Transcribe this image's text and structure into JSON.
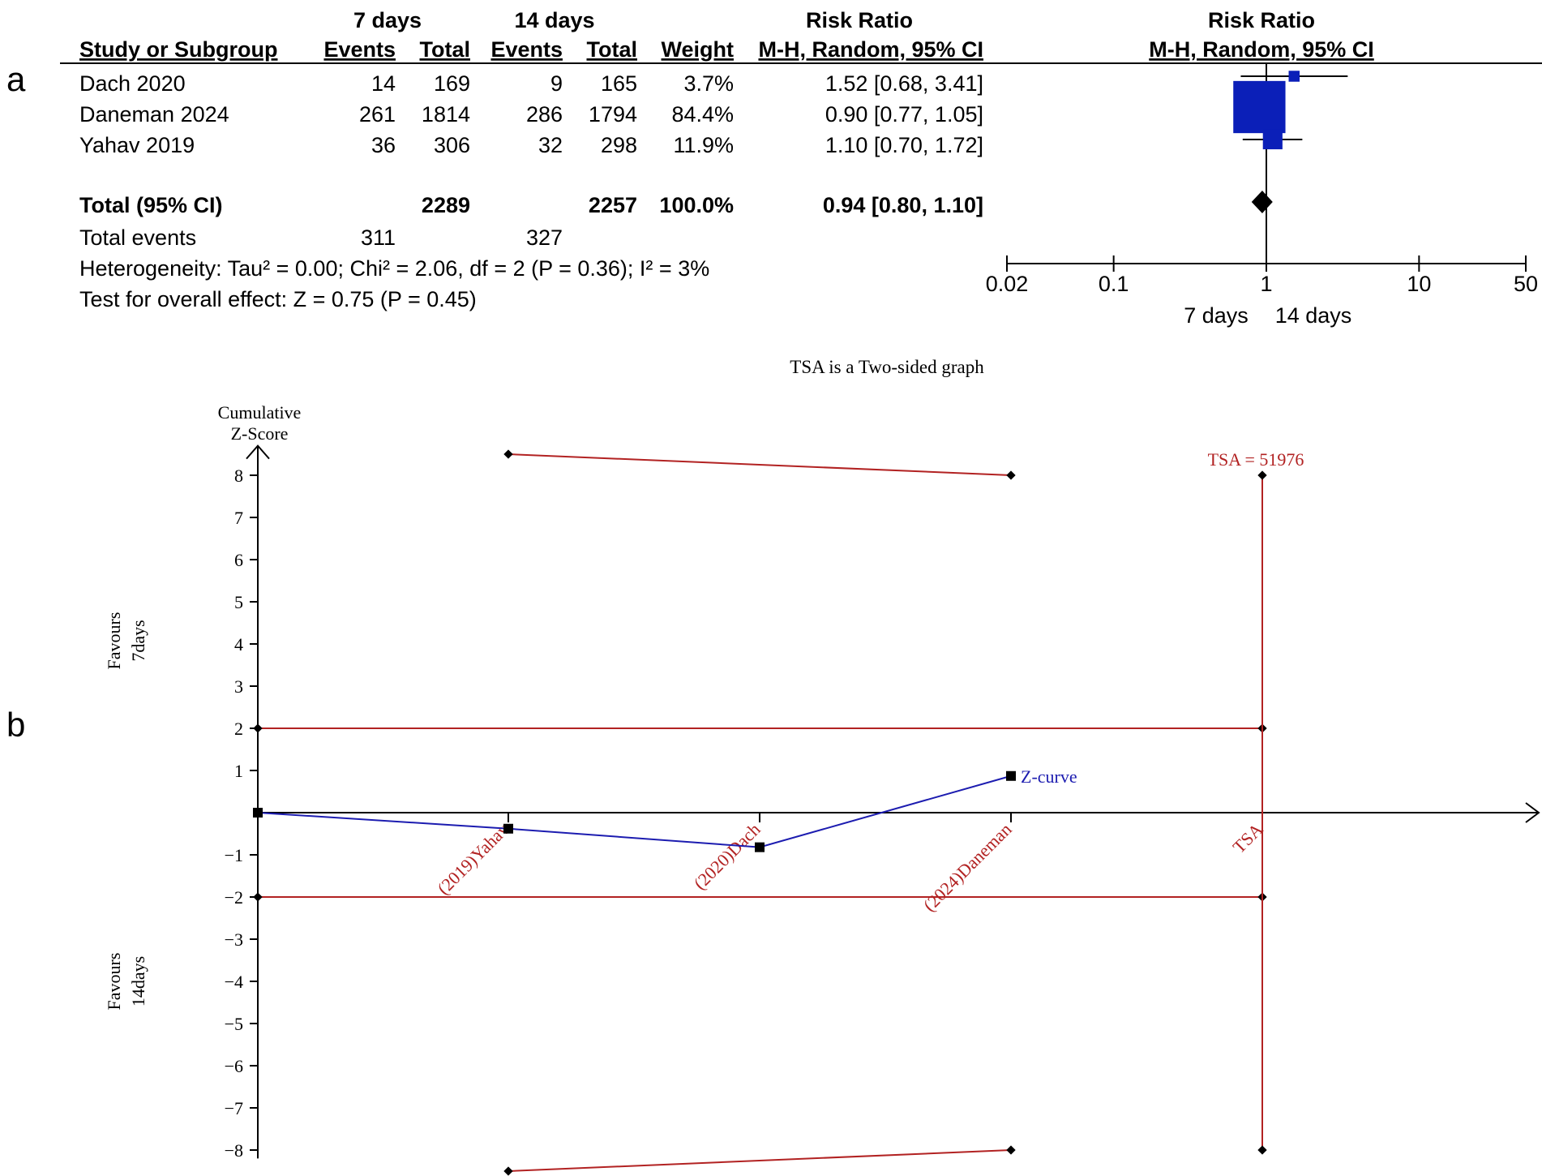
{
  "chart_data": [
    {
      "type": "table",
      "panel_label": "a",
      "header": {
        "group1": "7 days",
        "group2": "14 days",
        "risk_ratio_col": "Risk Ratio",
        "risk_ratio_plot": "Risk Ratio",
        "study_col": "Study or Subgroup",
        "events": "Events",
        "total": "Total",
        "weight": "Weight",
        "method": "M-H, Random, 95% CI",
        "method_plot": "M-H, Random, 95% CI"
      },
      "rows": [
        {
          "study": "Dach 2020",
          "events1": "14",
          "total1": "169",
          "events2": "9",
          "total2": "165",
          "weight": "3.7%",
          "ci_text": "1.52 [0.68, 3.41]",
          "rr": 1.52,
          "lo": 0.68,
          "hi": 3.41,
          "w": 3.7
        },
        {
          "study": "Daneman 2024",
          "events1": "261",
          "total1": "1814",
          "events2": "286",
          "total2": "1794",
          "weight": "84.4%",
          "ci_text": "0.90 [0.77, 1.05]",
          "rr": 0.9,
          "lo": 0.77,
          "hi": 1.05,
          "w": 84.4
        },
        {
          "study": "Yahav 2019",
          "events1": "36",
          "total1": "306",
          "events2": "32",
          "total2": "298",
          "weight": "11.9%",
          "ci_text": "1.10 [0.70, 1.72]",
          "rr": 1.1,
          "lo": 0.7,
          "hi": 1.72,
          "w": 11.9
        }
      ],
      "total": {
        "label": "Total (95% CI)",
        "total1": "2289",
        "total2": "2257",
        "weight": "100.0%",
        "ci_text": "0.94 [0.80, 1.10]",
        "rr": 0.94,
        "lo": 0.8,
        "hi": 1.1
      },
      "total_events": {
        "label": "Total events",
        "events1": "311",
        "events2": "327"
      },
      "heterogeneity": "Heterogeneity: Tau² = 0.00; Chi² = 2.06, df = 2 (P = 0.36); I² = 3%",
      "overall_effect": "Test for overall effect: Z = 0.75 (P = 0.45)",
      "x_axis": {
        "scale": "log",
        "ticks": [
          0.02,
          0.1,
          1,
          10,
          50
        ],
        "tick_labels": [
          "0.02",
          "0.1",
          "1",
          "10",
          "50"
        ],
        "xlim": [
          0.02,
          50
        ]
      },
      "favours_left": "7 days",
      "favours_right": "14 days",
      "colors": {
        "marker": "#0b1fb8",
        "line": "#000000"
      }
    },
    {
      "type": "line",
      "panel_label": "b",
      "title": "TSA is a Two-sided graph",
      "ylabel_line1": "Cumulative",
      "ylabel_line2": "Z-Score",
      "ylim": [
        -8,
        8
      ],
      "y_ticks": [
        8,
        7,
        6,
        5,
        4,
        3,
        2,
        1,
        -1,
        -2,
        -3,
        -4,
        -5,
        -6,
        -7,
        -8
      ],
      "y_tick_labels": [
        "8",
        "7",
        "6",
        "5",
        "4",
        "3",
        "2",
        "1",
        "−1",
        "−2",
        "−3",
        "−4",
        "−5",
        "−6",
        "−7",
        "−8"
      ],
      "x_categories": [
        "(2019)Yahav",
        "(2020)Dach",
        "(2024)Daneman",
        "TSA"
      ],
      "z_curve": {
        "name": "Z-curve",
        "values": [
          0,
          -0.38,
          -0.82,
          0.87
        ]
      },
      "upper_boundary": [
        8.5,
        8.0
      ],
      "lower_boundary": [
        -8.5,
        -8.0
      ],
      "conventional_boundary": [
        2,
        -2
      ],
      "tsa_label": "TSA = 51976",
      "favours_top_line1": "Favours",
      "favours_top_line2": "7days",
      "favours_bottom_line1": "Favours",
      "favours_bottom_line2": "14days",
      "colors": {
        "boundary": "#b22222",
        "zcurve": "#1c1cb0",
        "axis": "#000000"
      }
    }
  ]
}
